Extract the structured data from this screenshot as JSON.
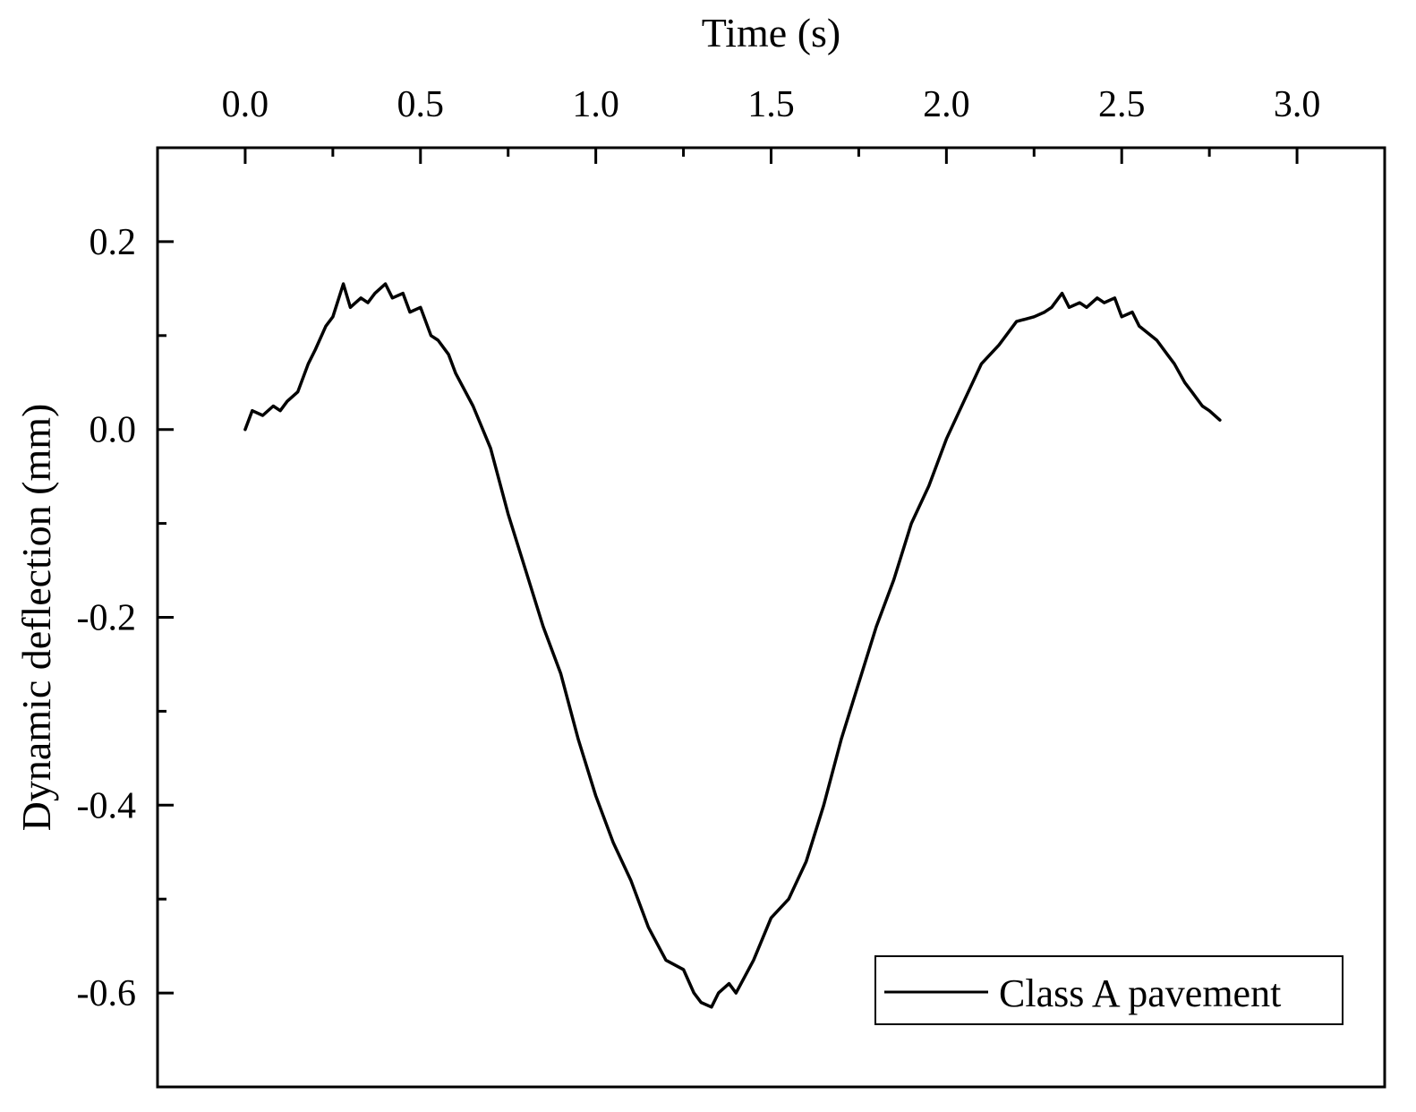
{
  "chart_data": {
    "type": "line",
    "xlabel": "Time (s)",
    "ylabel": "Dynamic deflection (mm)",
    "x_axis_position": "top",
    "xlim": [
      -0.25,
      3.25
    ],
    "ylim": [
      -0.7,
      0.3
    ],
    "xticks": [
      0.0,
      0.5,
      1.0,
      1.5,
      2.0,
      2.5,
      3.0
    ],
    "xtick_labels": [
      "0.0",
      "0.5",
      "1.0",
      "1.5",
      "2.0",
      "2.5",
      "3.0"
    ],
    "yticks": [
      0.2,
      0.0,
      -0.2,
      -0.4,
      -0.6
    ],
    "ytick_labels": [
      "0.2",
      "0.0",
      "-0.2",
      "-0.4",
      "-0.6"
    ],
    "grid": false,
    "legend_position": "bottom-right",
    "series": [
      {
        "name": "Class A pavement",
        "color": "#000000",
        "x": [
          0.0,
          0.02,
          0.05,
          0.08,
          0.1,
          0.12,
          0.15,
          0.18,
          0.2,
          0.23,
          0.25,
          0.28,
          0.3,
          0.33,
          0.35,
          0.37,
          0.4,
          0.42,
          0.45,
          0.47,
          0.5,
          0.53,
          0.55,
          0.58,
          0.6,
          0.65,
          0.7,
          0.75,
          0.8,
          0.85,
          0.9,
          0.95,
          1.0,
          1.05,
          1.1,
          1.15,
          1.2,
          1.25,
          1.28,
          1.3,
          1.33,
          1.35,
          1.38,
          1.4,
          1.45,
          1.5,
          1.55,
          1.6,
          1.65,
          1.7,
          1.75,
          1.8,
          1.85,
          1.9,
          1.95,
          2.0,
          2.05,
          2.1,
          2.15,
          2.2,
          2.25,
          2.28,
          2.3,
          2.33,
          2.35,
          2.38,
          2.4,
          2.43,
          2.45,
          2.48,
          2.5,
          2.53,
          2.55,
          2.6,
          2.63,
          2.65,
          2.68,
          2.7,
          2.73,
          2.75,
          2.78
        ],
        "y": [
          0.0,
          0.02,
          0.015,
          0.025,
          0.02,
          0.03,
          0.04,
          0.07,
          0.085,
          0.11,
          0.12,
          0.155,
          0.13,
          0.14,
          0.135,
          0.145,
          0.155,
          0.14,
          0.145,
          0.125,
          0.13,
          0.1,
          0.095,
          0.08,
          0.06,
          0.025,
          -0.02,
          -0.09,
          -0.15,
          -0.21,
          -0.26,
          -0.33,
          -0.39,
          -0.44,
          -0.48,
          -0.53,
          -0.565,
          -0.575,
          -0.6,
          -0.61,
          -0.615,
          -0.6,
          -0.59,
          -0.6,
          -0.565,
          -0.52,
          -0.5,
          -0.46,
          -0.4,
          -0.33,
          -0.27,
          -0.21,
          -0.16,
          -0.1,
          -0.06,
          -0.01,
          0.03,
          0.07,
          0.09,
          0.115,
          0.12,
          0.125,
          0.13,
          0.145,
          0.13,
          0.135,
          0.13,
          0.14,
          0.135,
          0.14,
          0.12,
          0.125,
          0.11,
          0.095,
          0.08,
          0.07,
          0.05,
          0.04,
          0.025,
          0.02,
          0.01
        ]
      }
    ]
  }
}
